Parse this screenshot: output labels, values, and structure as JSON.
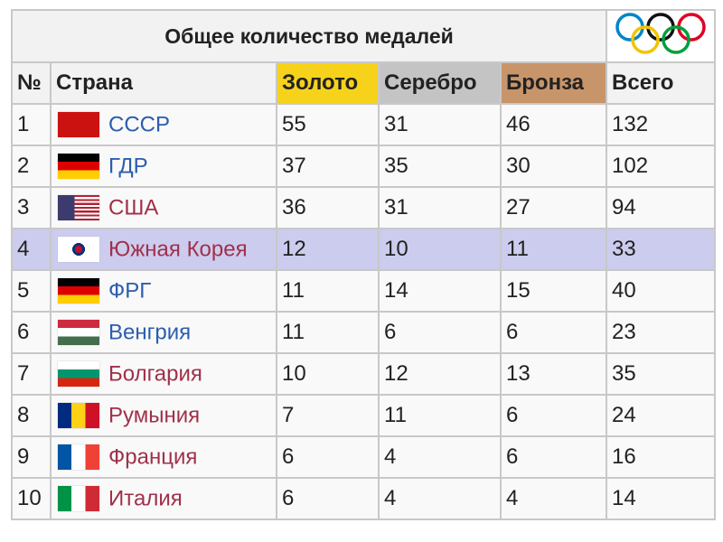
{
  "title": "Общее количество медалей",
  "colors": {
    "gold": "#f7d21b",
    "silver": "#c4c4c4",
    "bronze": "#c8956a",
    "highlight": "#ccccee",
    "link": "#2a5db0",
    "visited_link": "#a0304a"
  },
  "headers": {
    "rank": "№",
    "country": "Страна",
    "gold": "Золото",
    "silver": "Серебро",
    "bronze": "Бронза",
    "total": "Всего"
  },
  "rows": [
    {
      "rank": "1",
      "country": "СССР",
      "flag": "ussr",
      "link": "blue",
      "gold": "55",
      "silver": "31",
      "bronze": "46",
      "total": "132"
    },
    {
      "rank": "2",
      "country": "ГДР",
      "flag": "gdr",
      "link": "blue",
      "gold": "37",
      "silver": "35",
      "bronze": "30",
      "total": "102"
    },
    {
      "rank": "3",
      "country": "США",
      "flag": "usa",
      "link": "red",
      "gold": "36",
      "silver": "31",
      "bronze": "27",
      "total": "94"
    },
    {
      "rank": "4",
      "country": "Южная Корея",
      "flag": "korea",
      "link": "red",
      "gold": "12",
      "silver": "10",
      "bronze": "11",
      "total": "33",
      "highlighted": true
    },
    {
      "rank": "5",
      "country": "ФРГ",
      "flag": "frg",
      "link": "blue",
      "gold": "11",
      "silver": "14",
      "bronze": "15",
      "total": "40"
    },
    {
      "rank": "6",
      "country": "Венгрия",
      "flag": "hungary",
      "link": "blue",
      "gold": "11",
      "silver": "6",
      "bronze": "6",
      "total": "23"
    },
    {
      "rank": "7",
      "country": "Болгария",
      "flag": "bulgaria",
      "link": "red",
      "gold": "10",
      "silver": "12",
      "bronze": "13",
      "total": "35"
    },
    {
      "rank": "8",
      "country": "Румыния",
      "flag": "romania",
      "link": "red",
      "gold": "7",
      "silver": "11",
      "bronze": "6",
      "total": "24"
    },
    {
      "rank": "9",
      "country": "Франция",
      "flag": "france",
      "link": "red",
      "gold": "6",
      "silver": "4",
      "bronze": "6",
      "total": "16"
    },
    {
      "rank": "10",
      "country": "Италия",
      "flag": "italy",
      "link": "red",
      "gold": "6",
      "silver": "4",
      "bronze": "4",
      "total": "14"
    }
  ]
}
